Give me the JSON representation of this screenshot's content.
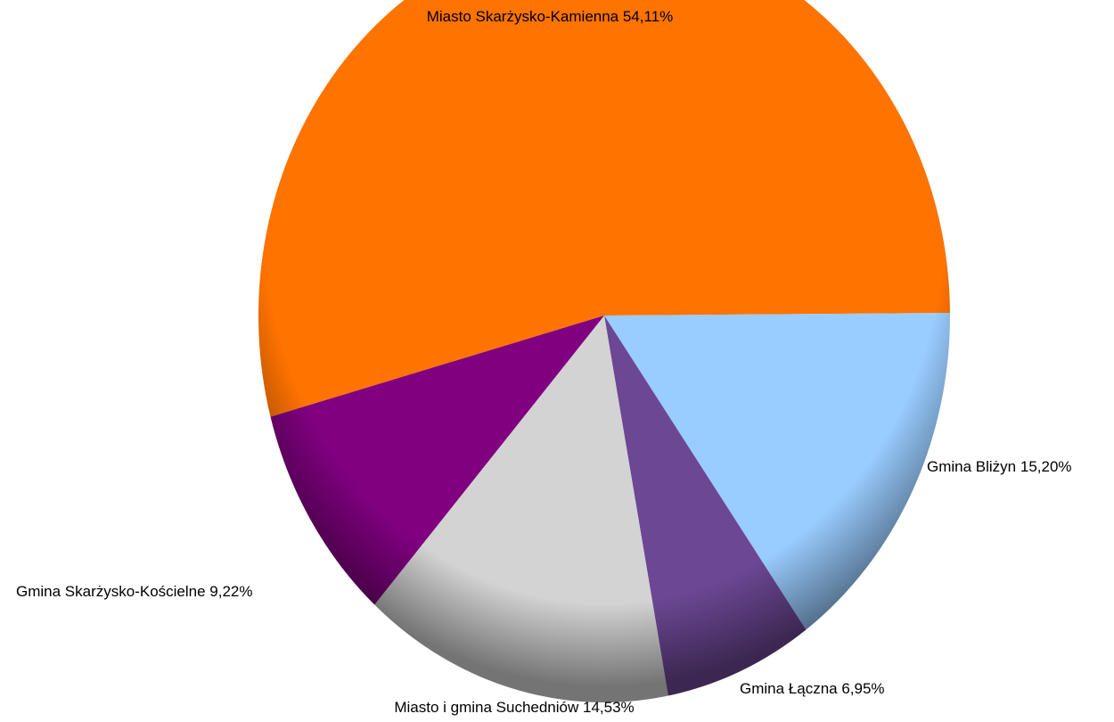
{
  "chart_data": {
    "type": "pie",
    "title": "",
    "slices": [
      {
        "label": "Miasto Skarżysko-Kamienna 54,11%",
        "value": 54.11,
        "color": "#ff7300"
      },
      {
        "label": "Gmina Bliżyn 15,20%",
        "value": 15.2,
        "color": "#99ccff"
      },
      {
        "label": "Gmina Łączna  6,95%",
        "value": 6.95,
        "color": "#6c4794"
      },
      {
        "label": "Miasto i gmina Suchedniów  14,53%",
        "value": 14.53,
        "color": "#d3d3d3"
      },
      {
        "label": "Gmina Skarżysko-Kościelne 9,22%",
        "value": 9.22,
        "color": "#800080"
      }
    ]
  }
}
